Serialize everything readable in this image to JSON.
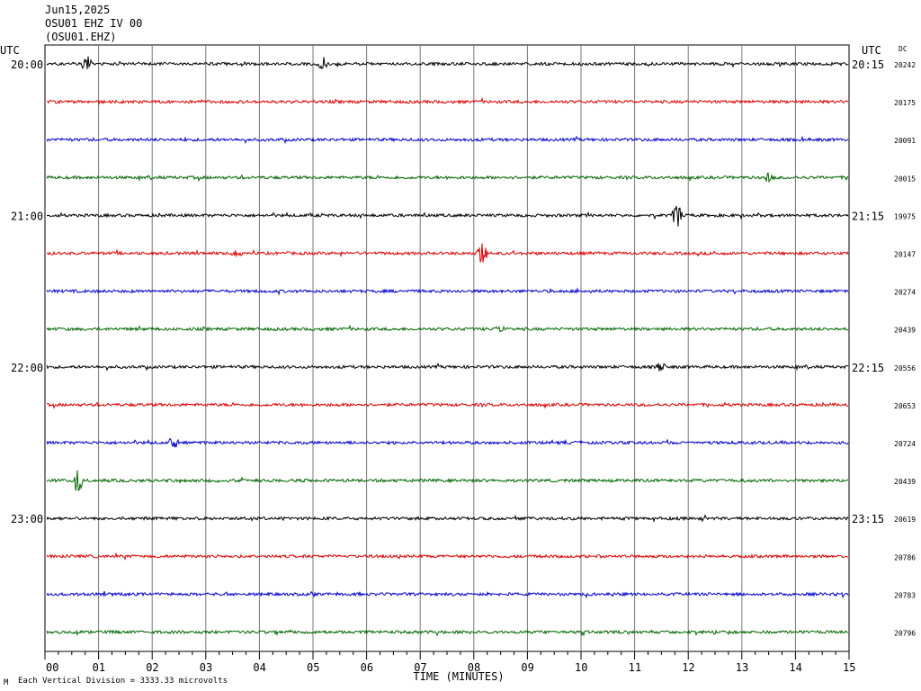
{
  "header": {
    "date": "Jun15,2025",
    "station": "OSU01 EHZ IV 00",
    "channel": "(OSU01.EHZ)"
  },
  "footer": {
    "scale_note": "Each Vertical Division = 3333.33 microvolts",
    "corner_mark": "M"
  },
  "chart_data": {
    "type": "line",
    "title": "",
    "xlabel": "TIME (MINUTES)",
    "ylabel": "",
    "x_ticks": [
      "00",
      "01",
      "02",
      "03",
      "04",
      "05",
      "06",
      "07",
      "08",
      "09",
      "10",
      "11",
      "12",
      "13",
      "14",
      "15"
    ],
    "xlim": [
      0,
      15
    ],
    "left_axis_label": "UTC",
    "right_axis_label": "UTC",
    "dc_label": "DC",
    "trace_colors": [
      "#000000",
      "#dd0000",
      "#0000cc",
      "#006600"
    ],
    "grid": true,
    "rows": [
      {
        "left": "20:00",
        "right": "20:15",
        "dc": "20242"
      },
      {
        "left": "",
        "right": "",
        "dc": "20175"
      },
      {
        "left": "",
        "right": "",
        "dc": "20091"
      },
      {
        "left": "",
        "right": "",
        "dc": "20015"
      },
      {
        "left": "21:00",
        "right": "21:15",
        "dc": "19975"
      },
      {
        "left": "",
        "right": "",
        "dc": "20147"
      },
      {
        "left": "",
        "right": "",
        "dc": "20274"
      },
      {
        "left": "",
        "right": "",
        "dc": "20439"
      },
      {
        "left": "22:00",
        "right": "22:15",
        "dc": "20556"
      },
      {
        "left": "",
        "right": "",
        "dc": "20653"
      },
      {
        "left": "",
        "right": "",
        "dc": "20724"
      },
      {
        "left": "",
        "right": "",
        "dc": "20439"
      },
      {
        "left": "23:00",
        "right": "23:15",
        "dc": "20619"
      },
      {
        "left": "",
        "right": "",
        "dc": "20786"
      },
      {
        "left": "",
        "right": "",
        "dc": "20783"
      },
      {
        "left": "",
        "right": "",
        "dc": "20796"
      }
    ],
    "events": [
      {
        "row": 0,
        "minute": 0.78,
        "amplitude": 1.2
      },
      {
        "row": 0,
        "minute": 5.2,
        "amplitude": 0.7
      },
      {
        "row": 3,
        "minute": 13.5,
        "amplitude": 0.6
      },
      {
        "row": 4,
        "minute": 11.8,
        "amplitude": 1.3
      },
      {
        "row": 5,
        "minute": 8.15,
        "amplitude": 1.4
      },
      {
        "row": 5,
        "minute": 3.6,
        "amplitude": 0.5
      },
      {
        "row": 7,
        "minute": 8.5,
        "amplitude": 0.4
      },
      {
        "row": 8,
        "minute": 11.5,
        "amplitude": 0.6
      },
      {
        "row": 10,
        "minute": 2.4,
        "amplitude": 0.7
      },
      {
        "row": 11,
        "minute": 0.6,
        "amplitude": 1.6
      }
    ]
  }
}
